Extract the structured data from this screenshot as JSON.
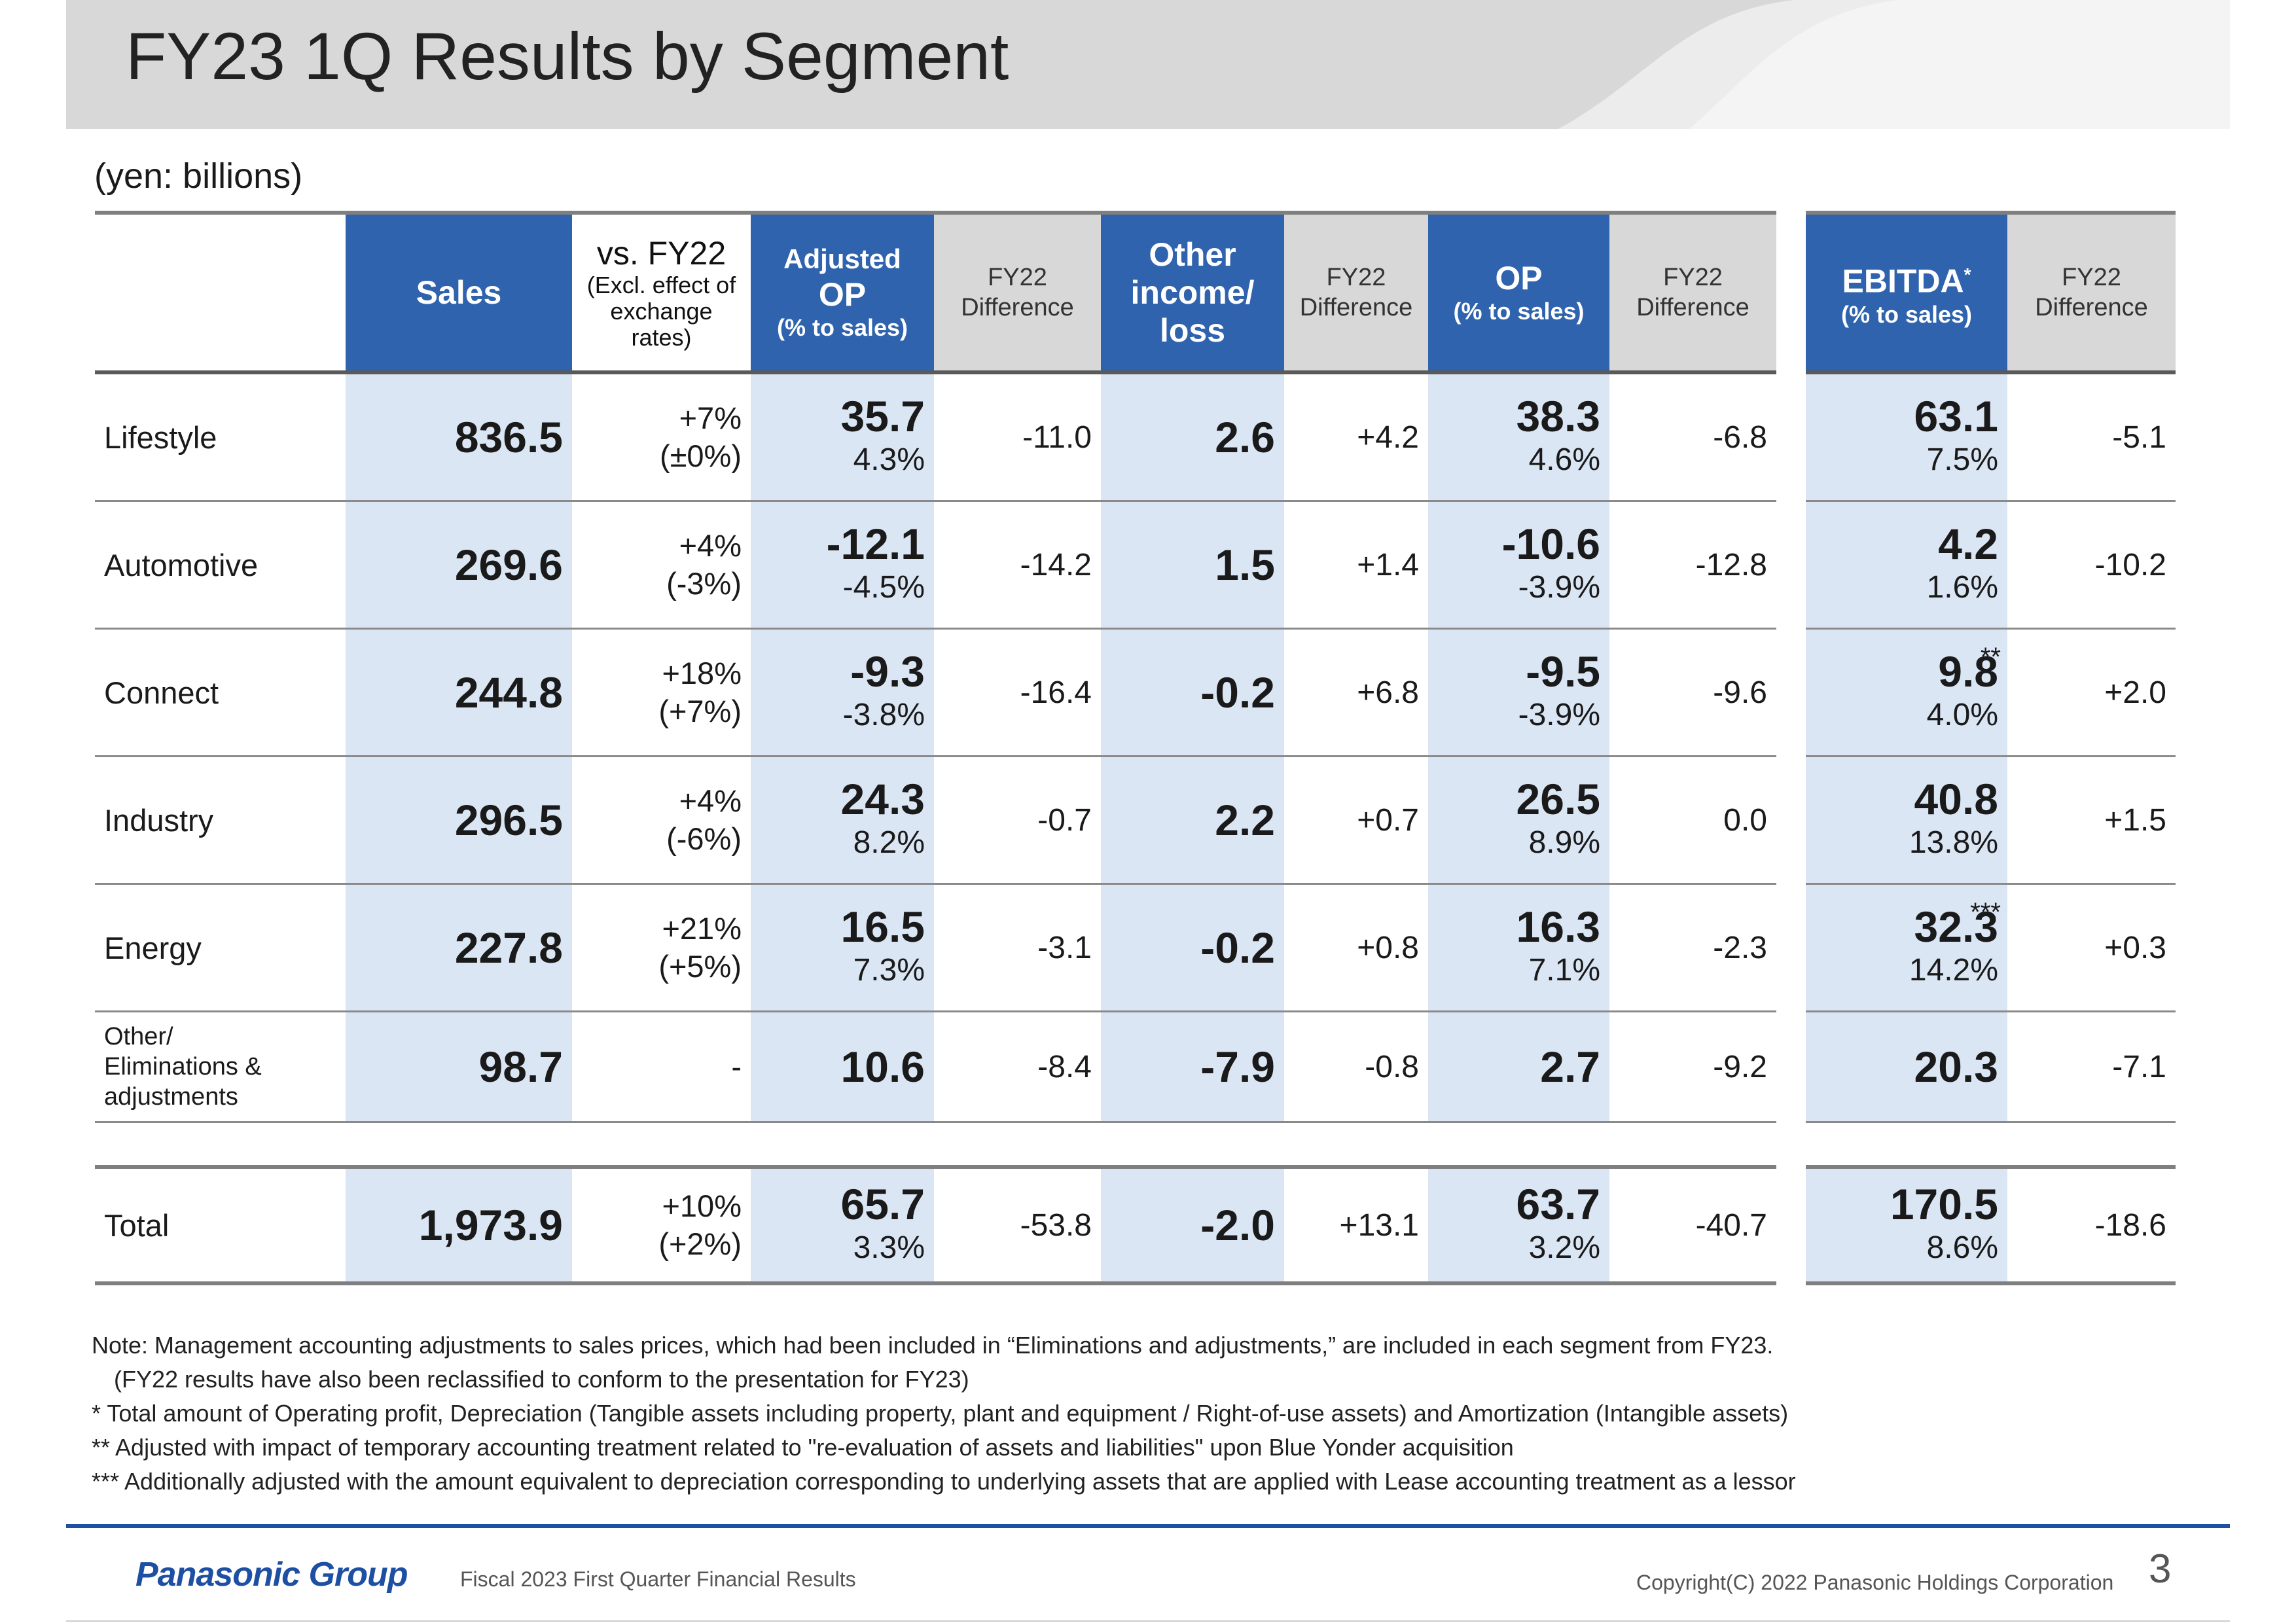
{
  "title": "FY23 1Q Results by Segment",
  "unit": "(yen: billions)",
  "header": {
    "sales": "Sales",
    "vs_fy22": "vs. FY22",
    "vs_note_1": "(Excl. effect of",
    "vs_note_2": "exchange",
    "vs_note_3": "rates)",
    "adj_op_1": "Adjusted",
    "adj_op_2": "OP",
    "adj_op_3": "(% to sales)",
    "fy22_1": "FY22",
    "fy22_2": "Difference",
    "other_1": "Other",
    "other_2": "income/",
    "other_3": "loss",
    "op_1": "OP",
    "op_2": "(% to sales)",
    "ebitda_1": "EBITDA",
    "ebitda_star": "*",
    "ebitda_2": "(% to sales)"
  },
  "rows": [
    {
      "segment": "Lifestyle",
      "sales": "836.5",
      "vs": "+7%",
      "vs_excl": "(±0%)",
      "adj_op": "35.7",
      "adj_op_pct": "4.3%",
      "adj_op_diff": "-11.0",
      "other": "2.6",
      "other_diff": "+4.2",
      "op": "38.3",
      "op_pct": "4.6%",
      "op_diff": "-6.8",
      "ebitda": "63.1",
      "ebitda_pct": "7.5%",
      "ebitda_note": "",
      "ebitda_diff": "-5.1"
    },
    {
      "segment": "Automotive",
      "sales": "269.6",
      "vs": "+4%",
      "vs_excl": "(-3%)",
      "adj_op": "-12.1",
      "adj_op_pct": "-4.5%",
      "adj_op_diff": "-14.2",
      "other": "1.5",
      "other_diff": "+1.4",
      "op": "-10.6",
      "op_pct": "-3.9%",
      "op_diff": "-12.8",
      "ebitda": "4.2",
      "ebitda_pct": "1.6%",
      "ebitda_note": "",
      "ebitda_diff": "-10.2"
    },
    {
      "segment": "Connect",
      "sales": "244.8",
      "vs": "+18%",
      "vs_excl": "(+7%)",
      "adj_op": "-9.3",
      "adj_op_pct": "-3.8%",
      "adj_op_diff": "-16.4",
      "other": "-0.2",
      "other_diff": "+6.8",
      "op": "-9.5",
      "op_pct": "-3.9%",
      "op_diff": "-9.6",
      "ebitda": "9.8",
      "ebitda_pct": "4.0%",
      "ebitda_note": "**",
      "ebitda_diff": "+2.0"
    },
    {
      "segment": "Industry",
      "sales": "296.5",
      "vs": "+4%",
      "vs_excl": "(-6%)",
      "adj_op": "24.3",
      "adj_op_pct": "8.2%",
      "adj_op_diff": "-0.7",
      "other": "2.2",
      "other_diff": "+0.7",
      "op": "26.5",
      "op_pct": "8.9%",
      "op_diff": "0.0",
      "ebitda": "40.8",
      "ebitda_pct": "13.8%",
      "ebitda_note": "",
      "ebitda_diff": "+1.5"
    },
    {
      "segment": "Energy",
      "sales": "227.8",
      "vs": "+21%",
      "vs_excl": "(+5%)",
      "adj_op": "16.5",
      "adj_op_pct": "7.3%",
      "adj_op_diff": "-3.1",
      "other": "-0.2",
      "other_diff": "+0.8",
      "op": "16.3",
      "op_pct": "7.1%",
      "op_diff": "-2.3",
      "ebitda": "32.3",
      "ebitda_pct": "14.2%",
      "ebitda_note": "***",
      "ebitda_diff": "+0.3"
    }
  ],
  "other_row": {
    "segment_1": "Other/",
    "segment_2": "Eliminations &",
    "segment_3": "adjustments",
    "sales": "98.7",
    "vs": "-",
    "adj_op": "10.6",
    "adj_op_diff": "-8.4",
    "other": "-7.9",
    "other_diff": "-0.8",
    "op": "2.7",
    "op_diff": "-9.2",
    "ebitda": "20.3",
    "ebitda_diff": "-7.1"
  },
  "total_row": {
    "segment": "Total",
    "sales": "1,973.9",
    "vs": "+10%",
    "vs_excl": "(+2%)",
    "adj_op": "65.7",
    "adj_op_pct": "3.3%",
    "adj_op_diff": "-53.8",
    "other": "-2.0",
    "other_diff": "+13.1",
    "op": "63.7",
    "op_pct": "3.2%",
    "op_diff": "-40.7",
    "ebitda": "170.5",
    "ebitda_pct": "8.6%",
    "ebitda_diff": "-18.6"
  },
  "notes": {
    "n1": "Note: Management accounting adjustments to sales prices, which had been included in “Eliminations and adjustments,” are included in each segment from FY23.",
    "n1b": "(FY22 results have also been reclassified to conform to the presentation for FY23)",
    "n2": "*  Total amount of Operating profit, Depreciation (Tangible assets including property, plant and equipment / Right-of-use assets) and Amortization (Intangible assets)",
    "n3": "**   Adjusted with impact of temporary accounting treatment related to \"re-evaluation of assets and liabilities\" upon Blue Yonder acquisition",
    "n4": "*** Additionally adjusted with the amount equivalent to depreciation corresponding to underlying assets that are applied with Lease accounting treatment as a lessor"
  },
  "footer": {
    "logo": "Panasonic Group",
    "doc": "Fiscal 2023 First Quarter  Financial Results",
    "copyright": "Copyright(C) 2022 Panasonic Holdings Corporation",
    "page": "3"
  },
  "colors": {
    "header_blue": "#2f63ad",
    "light_blue": "#dbe6f5",
    "header_gray": "#d8d8d8",
    "brand_blue": "#1d4fa3"
  }
}
